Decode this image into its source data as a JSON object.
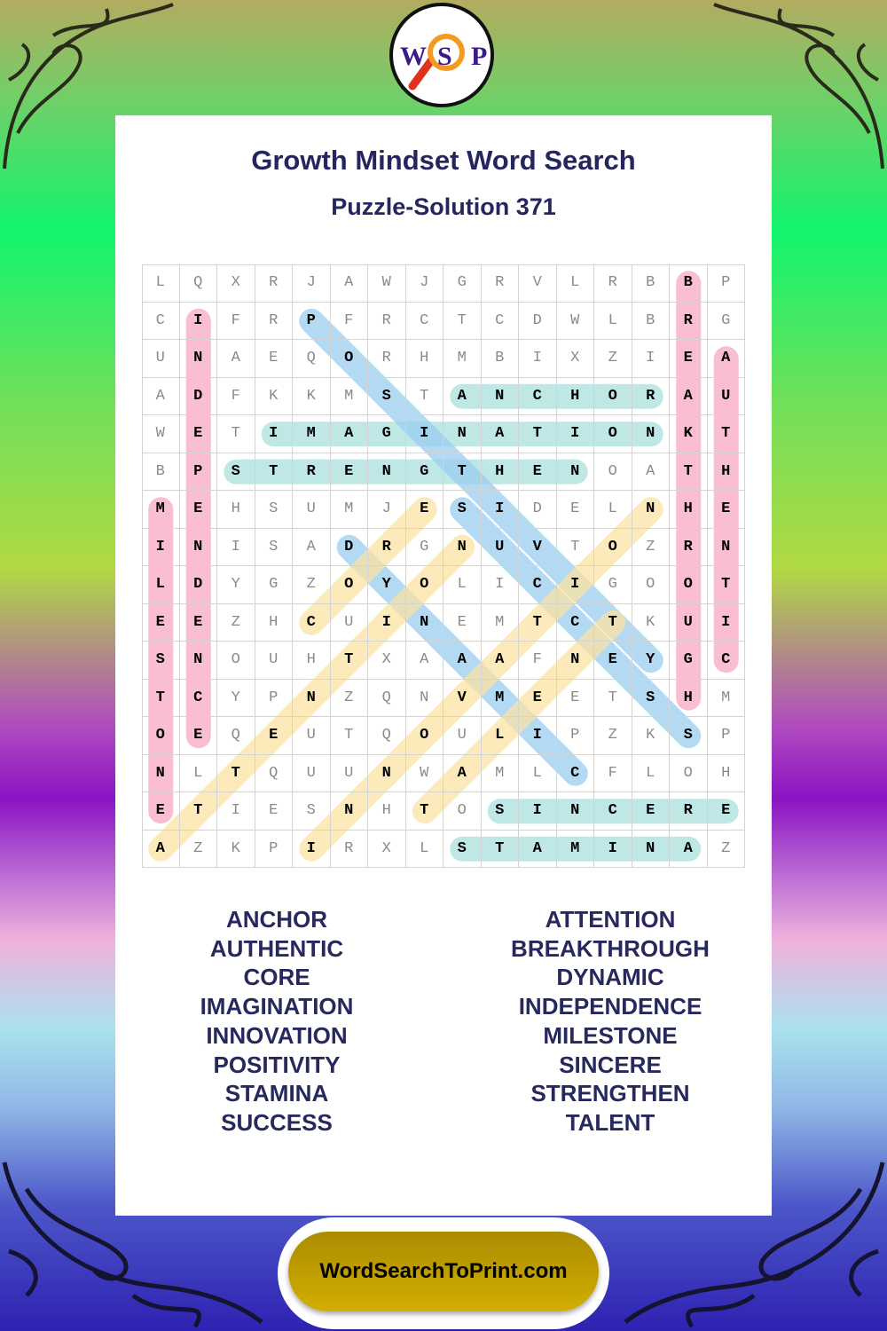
{
  "logo": {
    "letters": [
      "W",
      "S",
      "P"
    ]
  },
  "header": {
    "title": "Growth Mindset Word Search",
    "subtitle": "Puzzle-Solution 371"
  },
  "grid": {
    "rows": [
      "LQXRJAWJGRVLRBBP",
      "CIFRPFRCTCDWLBRG",
      "UNAEQORHMBIXZIEA",
      "ADFKKMSTANCHORAU",
      "WETIMAGINATIONKT",
      "BPSTRENGTHENOATH",
      "MEHSUMJESIDELNHE",
      "INISADRGNUVTOZRN",
      "LDYGZOYOLICIGOOT",
      "EEZHCUINEMTCTKUI",
      "SNOUHTXAAAFNEYGC",
      "TCYPNZQNVMEETSHM",
      "OEQEUTQOULIPZKSP",
      "NLTQUUNWAMLCFLOH",
      "ETIESNHTOSINCERE",
      "AZKPIRXLSTAMINAZ"
    ],
    "highlights": [
      {
        "word": "INDEPENDENCE",
        "start": [
          1,
          1
        ],
        "end": [
          12,
          1
        ],
        "color": "#f7a9c0"
      },
      {
        "word": "MILESTONE",
        "start": [
          6,
          0
        ],
        "end": [
          14,
          0
        ],
        "color": "#f7a9c0"
      },
      {
        "word": "BREAKTHROUGH",
        "start": [
          0,
          14
        ],
        "end": [
          11,
          14
        ],
        "color": "#f7a9c0"
      },
      {
        "word": "AUTHENTIC",
        "start": [
          2,
          15
        ],
        "end": [
          10,
          15
        ],
        "color": "#f7a9c0"
      },
      {
        "word": "ANCHOR",
        "start": [
          3,
          8
        ],
        "end": [
          3,
          13
        ],
        "color": "#a9e0de"
      },
      {
        "word": "IMAGINATION",
        "start": [
          4,
          3
        ],
        "end": [
          4,
          13
        ],
        "color": "#a9e0de"
      },
      {
        "word": "STRENGTHEN",
        "start": [
          5,
          2
        ],
        "end": [
          5,
          11
        ],
        "color": "#a9e0de"
      },
      {
        "word": "SINCERE",
        "start": [
          14,
          9
        ],
        "end": [
          14,
          15
        ],
        "color": "#a9e0de"
      },
      {
        "word": "STAMINA",
        "start": [
          15,
          8
        ],
        "end": [
          15,
          14
        ],
        "color": "#a9e0de"
      },
      {
        "word": "POSITIVITY",
        "start": [
          1,
          4
        ],
        "end": [
          10,
          13
        ],
        "color": "#9ccdf0"
      },
      {
        "word": "SUCCESS",
        "start": [
          6,
          8
        ],
        "end": [
          12,
          14
        ],
        "color": "#9ccdf0"
      },
      {
        "word": "DYNAMIC",
        "start": [
          7,
          5
        ],
        "end": [
          13,
          11
        ],
        "color": "#9ccdf0"
      },
      {
        "word": "CORE",
        "start": [
          9,
          4
        ],
        "end": [
          6,
          7
        ],
        "color": "#fce3a4"
      },
      {
        "word": "ATTENTION",
        "start": [
          15,
          0
        ],
        "end": [
          7,
          8
        ],
        "color": "#fce3a4"
      },
      {
        "word": "INNOVATION",
        "start": [
          15,
          4
        ],
        "end": [
          6,
          13
        ],
        "color": "#fce3a4"
      },
      {
        "word": "TALENT",
        "start": [
          14,
          7
        ],
        "end": [
          9,
          12
        ],
        "color": "#fce3a4"
      }
    ]
  },
  "word_list": {
    "left": [
      "ANCHOR",
      "AUTHENTIC",
      "CORE",
      "IMAGINATION",
      "INNOVATION",
      "POSITIVITY",
      "STAMINA",
      "SUCCESS"
    ],
    "right": [
      "ATTENTION",
      "BREAKTHROUGH",
      "DYNAMIC",
      "INDEPENDENCE",
      "MILESTONE",
      "SINCERE",
      "STRENGTHEN",
      "TALENT"
    ]
  },
  "footer": {
    "site": "WordSearchToPrint.com"
  }
}
